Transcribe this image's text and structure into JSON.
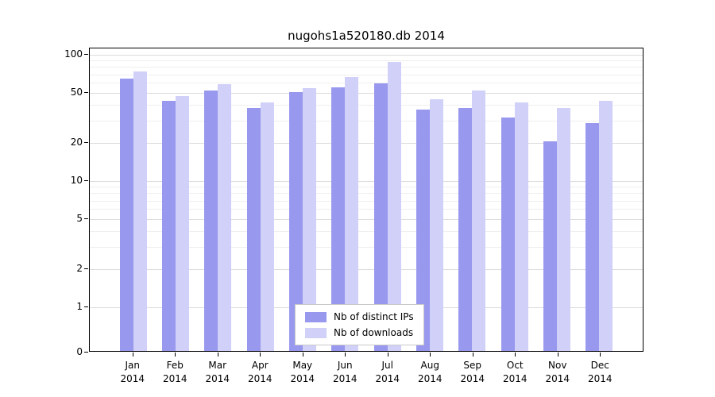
{
  "title": "nugohs1a520180.db 2014",
  "chart_data": {
    "type": "bar",
    "title": "nugohs1a520180.db 2014",
    "categories": [
      "Jan",
      "Feb",
      "Mar",
      "Apr",
      "May",
      "Jun",
      "Jul",
      "Aug",
      "Sep",
      "Oct",
      "Nov",
      "Dec"
    ],
    "category_year": "2014",
    "series": [
      {
        "name": "Nb of distinct IPs",
        "color": "#9898ee",
        "values": [
          63,
          42,
          51,
          37,
          49,
          54,
          58,
          36,
          37,
          31,
          20,
          28
        ]
      },
      {
        "name": "Nb of downloads",
        "color": "#d0d0f8",
        "values": [
          72,
          46,
          57,
          41,
          53,
          65,
          85,
          43,
          51,
          41,
          37,
          42
        ]
      }
    ],
    "yscale": "log",
    "yticks": [
      0,
      1,
      2,
      5,
      10,
      20,
      50,
      100
    ],
    "ylim": [
      0,
      112
    ],
    "grid": true,
    "legend_position": "lower center"
  }
}
